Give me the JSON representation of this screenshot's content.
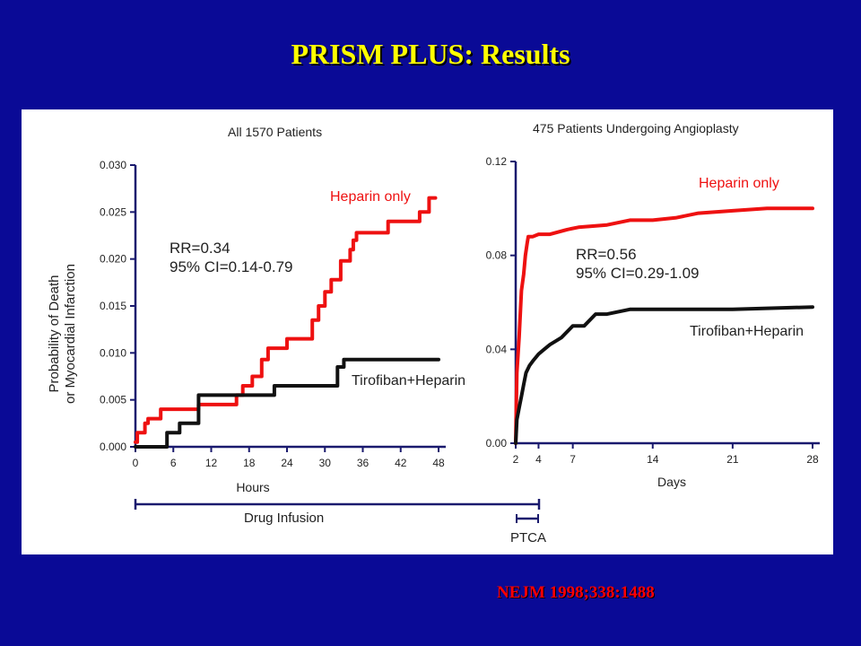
{
  "slide": {
    "title": "PRISM PLUS: Results",
    "citation": "NEJM 1998;338:1488"
  },
  "colors": {
    "background": "#0a0a96",
    "title": "#ffff00",
    "heparin": "#ee1111",
    "tirofiban": "#111111",
    "axis": "#1a1a6e",
    "citation": "#ff0000"
  },
  "chart_data": [
    {
      "type": "line",
      "title": "All 1570 Patients",
      "ylabel": "Probability of Death or Myocardial Infarction",
      "ylabel_line1": "Probability of Death",
      "ylabel_line2": "or Myocardial Infarction",
      "xlabel": "Hours",
      "xlim": [
        0,
        48
      ],
      "ylim": [
        0,
        0.03
      ],
      "x_ticks": [
        "0",
        "6",
        "12",
        "18",
        "24",
        "30",
        "36",
        "42",
        "48"
      ],
      "y_ticks": [
        "0.000",
        "0.005",
        "0.010",
        "0.015",
        "0.020",
        "0.025",
        "0.030"
      ],
      "annotation": {
        "line1": "RR=0.34",
        "line2": "95% CI=0.14-0.79"
      },
      "series": [
        {
          "name": "Heparin only",
          "color": "#ee1111",
          "x": [
            0,
            0.3,
            0.3,
            1.5,
            1.5,
            2,
            2,
            4,
            4,
            10,
            10,
            16,
            16,
            17,
            17,
            18.5,
            18.5,
            20,
            20,
            21,
            21,
            24,
            24,
            28,
            28,
            29,
            29,
            30,
            30,
            31,
            31,
            32.5,
            32.5,
            34,
            34,
            34.5,
            34.5,
            35,
            35,
            36,
            36,
            40,
            40,
            45,
            45,
            46.5,
            46.5,
            47.5
          ],
          "y": [
            0.0005,
            0.0005,
            0.0015,
            0.0015,
            0.0025,
            0.0025,
            0.003,
            0.003,
            0.004,
            0.004,
            0.0045,
            0.0045,
            0.0055,
            0.0055,
            0.0065,
            0.0065,
            0.0075,
            0.0075,
            0.0093,
            0.0093,
            0.0105,
            0.0105,
            0.0115,
            0.0115,
            0.0135,
            0.0135,
            0.015,
            0.015,
            0.0165,
            0.0165,
            0.0178,
            0.0178,
            0.0198,
            0.0198,
            0.021,
            0.021,
            0.022,
            0.022,
            0.0228,
            0.0228,
            0.0228,
            0.0228,
            0.024,
            0.024,
            0.025,
            0.025,
            0.0265,
            0.0265
          ]
        },
        {
          "name": "Tirofiban+Heparin",
          "color": "#111111",
          "x": [
            0,
            5,
            5,
            7,
            7,
            10,
            10,
            16,
            16,
            22,
            22,
            32,
            32,
            33,
            33,
            48
          ],
          "y": [
            0,
            0,
            0.0015,
            0.0015,
            0.0025,
            0.0025,
            0.0055,
            0.0055,
            0.0055,
            0.0055,
            0.0065,
            0.0065,
            0.0085,
            0.0085,
            0.0093,
            0.0093
          ]
        }
      ]
    },
    {
      "type": "line",
      "title": "475 Patients Undergoing Angioplasty",
      "xlabel": "Days",
      "xlim": [
        2,
        28
      ],
      "ylim": [
        0,
        0.12
      ],
      "x_ticks": [
        "2",
        "4",
        "7",
        "14",
        "21",
        "28"
      ],
      "y_ticks": [
        "0.00",
        "0.04",
        "0.08",
        "0.12"
      ],
      "annotation": {
        "line1": "RR=0.56",
        "line2": "95% CI=0.29-1.09"
      },
      "series": [
        {
          "name": "Heparin only",
          "color": "#ee1111",
          "x": [
            2,
            2.05,
            2.1,
            2.3,
            2.5,
            2.7,
            2.85,
            3.0,
            3.1,
            3.3,
            3.5,
            4.0,
            5.0,
            6.5,
            7.5,
            10,
            12,
            14,
            16,
            18,
            21,
            24,
            26,
            28
          ],
          "y": [
            0,
            0.015,
            0.03,
            0.045,
            0.065,
            0.072,
            0.08,
            0.085,
            0.088,
            0.088,
            0.088,
            0.089,
            0.089,
            0.091,
            0.092,
            0.093,
            0.095,
            0.095,
            0.096,
            0.098,
            0.099,
            0.1,
            0.1,
            0.1
          ]
        },
        {
          "name": "Tirofiban+Heparin",
          "color": "#111111",
          "x": [
            2,
            2.1,
            2.3,
            2.5,
            2.7,
            2.9,
            3.2,
            3.5,
            4.0,
            4.5,
            5.0,
            6.0,
            7.0,
            8.0,
            9.0,
            10,
            12,
            14,
            21,
            28
          ],
          "y": [
            0,
            0.01,
            0.015,
            0.02,
            0.025,
            0.03,
            0.033,
            0.035,
            0.038,
            0.04,
            0.042,
            0.045,
            0.05,
            0.05,
            0.055,
            0.055,
            0.057,
            0.057,
            0.057,
            0.058
          ]
        }
      ]
    }
  ],
  "timeline": {
    "drug_infusion_label": "Drug Infusion",
    "ptca_label": "PTCA"
  }
}
